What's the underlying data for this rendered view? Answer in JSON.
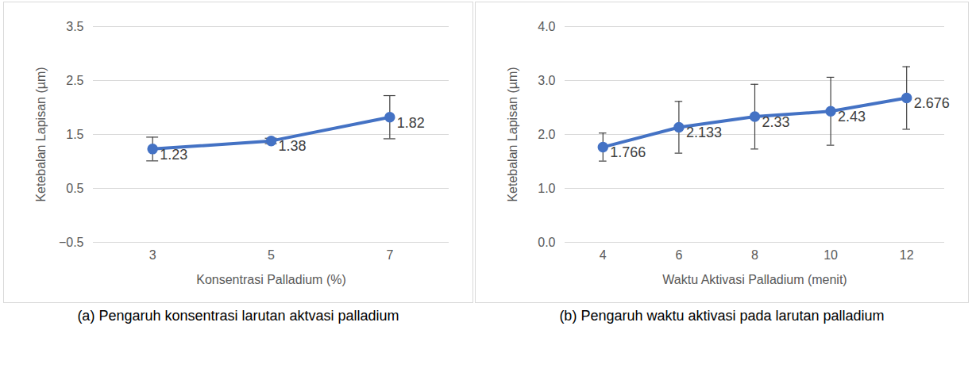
{
  "chart_data": [
    {
      "type": "line",
      "title": "(a) Pengaruh konsentrasi larutan aktvasi palladium",
      "x_label": "Konsentrasi Palladium (%)",
      "y_label": "Ketebalan Lapisan (µm)",
      "categories": [
        "3",
        "5",
        "7"
      ],
      "values": [
        1.23,
        1.38,
        1.82
      ],
      "errors": [
        0.22,
        0.05,
        0.4
      ],
      "color": "#4472c4",
      "marker": "circle",
      "ylim": [
        -0.5,
        3.5
      ],
      "yticks": [
        -0.5,
        0.5,
        1.5,
        2.5,
        3.5
      ],
      "grid": true,
      "data_labels": true
    },
    {
      "type": "line",
      "title": "(b) Pengaruh waktu aktivasi pada larutan palladium",
      "x_label": "Waktu Aktivasi Palladium (menit)",
      "y_label": "Ketebalan Lapisan (µm)",
      "categories": [
        "4",
        "6",
        "8",
        "10",
        "12"
      ],
      "values": [
        1.766,
        2.133,
        2.33,
        2.43,
        2.676
      ],
      "errors": [
        0.26,
        0.48,
        0.6,
        0.63,
        0.58
      ],
      "color": "#4472c4",
      "marker": "circle",
      "ylim": [
        0,
        4
      ],
      "yticks": [
        0,
        1,
        2,
        3,
        4
      ],
      "grid": true,
      "data_labels": true
    }
  ]
}
